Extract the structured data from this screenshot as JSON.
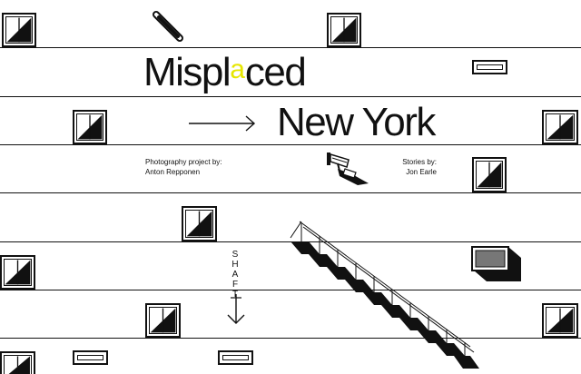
{
  "title": {
    "word1_start": "Mispl",
    "word1_accent": "a",
    "word1_end": "ced",
    "word2": "New York"
  },
  "credits": {
    "photo_label": "Photography project by:",
    "photo_name": "Anton Repponen",
    "stories_label": "Stories by:",
    "stories_name": "Jon Earle"
  },
  "shaft": {
    "letters": [
      "S",
      "H",
      "A",
      "F",
      "T"
    ]
  },
  "colors": {
    "accent": "#e6e600",
    "ink": "#111111",
    "background": "#ffffff"
  },
  "icons": [
    "security-camera-icon",
    "arrow-icon",
    "down-arrow-icon",
    "staircase-icon",
    "air-conditioner-icon"
  ]
}
